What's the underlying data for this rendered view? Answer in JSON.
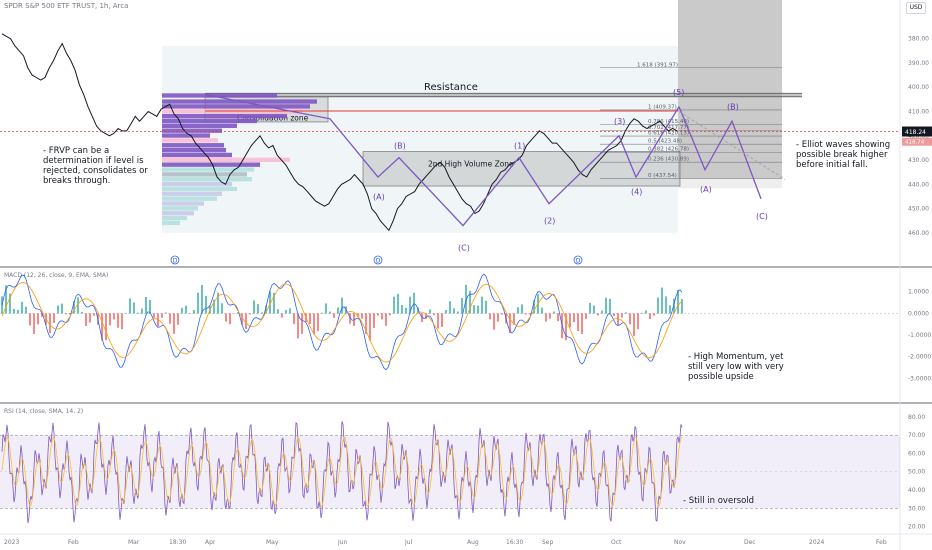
{
  "header": {
    "symbol": "SPDR S&P 500 ETF TRUST, 1h, Arca",
    "currency": "USD"
  },
  "panels": {
    "macd_label": "MACD (12, 26, close, 9, EMA, SMA)",
    "rsi_label": "RSI (14, close, SMA, 14, 2)"
  },
  "notes": {
    "frvp": "- FRVP can be a\ndetermination if level is\nrejected, consolidates or\nbreaks through.",
    "elliot": "- Elliot waves showing\npossible break higher\nbefore initial fall.",
    "momentum": "- High Momentum, yet\nstill very low with very\npossible upside",
    "rsi": "- Still in oversold"
  },
  "chart_data": [
    {
      "type": "line",
      "title": "SPDR S&P 500 ETF TRUST, 1h, Arca",
      "y_ticks": [
        "380.00",
        "390.00",
        "400.00",
        "410.00",
        "420.00",
        "430.00",
        "440.00",
        "450.00",
        "460.00"
      ],
      "y_range": [
        369,
        472
      ],
      "x_ticks": [
        "2023",
        "Feb",
        "Mar",
        "18:30",
        "Apr",
        "May",
        "Jun",
        "Jul",
        "Aug",
        "16:30",
        "Sep",
        "Oct",
        "Nov",
        "Dec",
        "2024",
        "Feb"
      ],
      "last_price": "418.24",
      "prev_price": "418.74",
      "annotations": {
        "resistance": "Resistance",
        "consolidation_zone": "Consolidation zone",
        "high_volume_zone": "2nd High Volume Zone",
        "fib_levels": [
          "1.618 (391.97)",
          "1 (409.37)",
          "0.786 (415.40)",
          "0.702 (417.77)",
          "0.618 (420.13)",
          "0.5 (423.48)",
          "0.382 (426.78)",
          "0.236 (430.89)",
          "0 (437.54)"
        ],
        "wave_labels": [
          "(A)",
          "(B)",
          "(C)",
          "(1)",
          "(2)",
          "(3)",
          "(4)",
          "(5)",
          "(A)",
          "(B)",
          "(C)"
        ],
        "dividend_markers": [
          "D",
          "D",
          "D"
        ]
      },
      "series": [
        {
          "values": [
            378,
            379,
            380,
            383,
            385,
            387,
            392,
            395,
            396,
            397,
            396,
            392,
            389,
            385,
            382,
            386,
            389,
            393,
            399,
            403,
            408,
            412,
            416,
            418,
            419,
            420,
            419,
            417,
            418,
            418,
            415,
            412,
            414,
            412,
            410,
            411,
            412,
            409,
            408,
            407,
            411,
            413,
            417,
            419,
            420,
            423,
            425,
            427,
            429,
            432,
            437,
            439,
            440,
            436,
            434,
            433,
            430,
            427,
            424,
            422,
            420,
            423,
            425,
            424,
            428,
            430,
            432,
            435,
            438,
            440,
            441,
            443,
            445,
            447,
            448,
            449,
            448,
            445,
            442,
            440,
            439,
            438,
            436,
            438,
            440,
            444,
            450,
            452,
            455,
            457,
            459,
            455,
            450,
            448,
            445,
            444,
            443,
            440,
            438,
            436,
            434,
            432,
            431,
            433,
            437,
            440,
            443,
            446,
            448,
            449,
            452,
            451,
            448,
            444,
            440,
            438,
            435,
            434,
            432,
            431,
            430,
            428,
            424,
            422,
            420,
            418,
            419,
            421,
            423,
            423,
            425,
            427,
            429,
            431,
            434,
            436,
            437,
            434,
            432,
            430,
            428,
            426,
            425,
            424,
            422,
            418,
            415,
            413,
            414,
            416,
            417,
            416,
            415,
            414,
            416,
            418,
            417,
            418
          ]
        }
      ]
    },
    {
      "type": "line",
      "title": "MACD (12, 26, close, 9, EMA, SMA)",
      "y_ticks": [
        "1.0000",
        "0.0000",
        "-1.0000",
        "-2.0000",
        "-3.0000"
      ],
      "y_range": [
        -4.0,
        2.0
      ]
    },
    {
      "type": "line",
      "title": "RSI (14, close, SMA, 14, 2)",
      "y_ticks": [
        "80.00",
        "70.00",
        "60.00",
        "50.00",
        "40.00",
        "30.00",
        "20.00"
      ],
      "y_range": [
        17,
        86
      ],
      "bands": [
        30,
        70
      ]
    }
  ]
}
